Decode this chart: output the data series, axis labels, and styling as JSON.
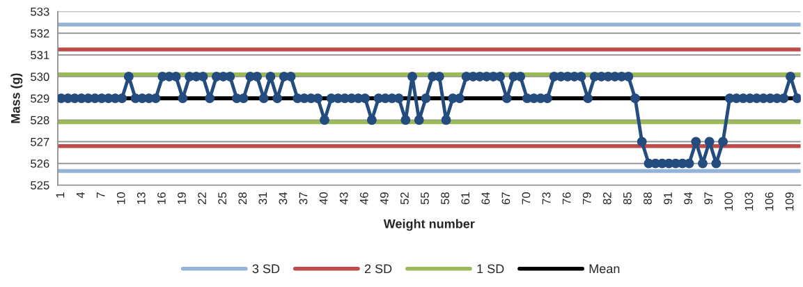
{
  "chart_data": {
    "type": "line",
    "xlabel": "Weight number",
    "ylabel": "Mass (g)",
    "categories": [
      "1",
      null,
      null,
      "4",
      null,
      null,
      "7",
      null,
      null,
      "10",
      null,
      null,
      "13",
      null,
      null,
      "16",
      null,
      null,
      "19",
      null,
      null,
      "22",
      null,
      null,
      "25",
      null,
      null,
      "28",
      null,
      null,
      "31",
      null,
      null,
      "34",
      null,
      null,
      "37",
      null,
      null,
      "40",
      null,
      null,
      "43",
      null,
      null,
      "46",
      null,
      null,
      "49",
      null,
      null,
      "52",
      null,
      null,
      "55",
      null,
      null,
      "58",
      null,
      null,
      "61",
      null,
      null,
      "64",
      null,
      null,
      "67",
      null,
      null,
      "70",
      null,
      null,
      "73",
      null,
      null,
      "76",
      null,
      null,
      "79",
      null,
      null,
      "82",
      null,
      null,
      "85",
      null,
      null,
      "88",
      null,
      null,
      "91",
      null,
      null,
      "94",
      null,
      null,
      "97",
      null,
      null,
      "100",
      null,
      null,
      "103",
      null,
      null,
      "106",
      null,
      null,
      "109",
      null
    ],
    "series": [
      {
        "color": "#244c7e",
        "values": [
          529,
          529,
          529,
          529,
          529,
          529,
          529,
          529,
          529,
          529,
          530,
          529,
          529,
          529,
          529,
          530,
          530,
          530,
          529,
          530,
          530,
          530,
          529,
          530,
          530,
          530,
          529,
          529,
          530,
          530,
          529,
          530,
          529,
          530,
          530,
          529,
          529,
          529,
          529,
          528,
          529,
          529,
          529,
          529,
          529,
          529,
          528,
          529,
          529,
          529,
          529,
          528,
          530,
          528,
          529,
          530,
          530,
          528,
          529,
          529,
          530,
          530,
          530,
          530,
          530,
          530,
          529,
          530,
          530,
          529,
          529,
          529,
          529,
          530,
          530,
          530,
          530,
          530,
          529,
          530,
          530,
          530,
          530,
          530,
          530,
          529,
          527,
          526,
          526,
          526,
          526,
          526,
          526,
          526,
          527,
          526,
          527,
          526,
          527,
          529,
          529,
          529,
          529,
          529,
          529,
          529,
          529,
          529,
          530,
          529
        ]
      }
    ],
    "marker": "circle",
    "line_style": "solid",
    "ylim": [
      525,
      533
    ],
    "yticks": [
      525,
      526,
      527,
      528,
      529,
      530,
      531,
      532,
      533
    ],
    "grid": "y",
    "ref_lines": [
      {
        "axis": "y",
        "value": 532.4,
        "label": "3 SD",
        "color": "#95b3d7"
      },
      {
        "axis": "y",
        "value": 525.65,
        "color": "#95b3d7"
      },
      {
        "axis": "y",
        "value": 531.25,
        "label": "2 SD",
        "color": "#be4b48"
      },
      {
        "axis": "y",
        "value": 526.8,
        "color": "#be4b48"
      },
      {
        "axis": "y",
        "value": 530.1,
        "label": "1 SD",
        "color": "#9bbb59"
      },
      {
        "axis": "y",
        "value": 527.9,
        "color": "#9bbb59"
      },
      {
        "axis": "y",
        "value": 529.0,
        "label": "Mean",
        "color": "#000000"
      }
    ],
    "legend": "bottom"
  }
}
